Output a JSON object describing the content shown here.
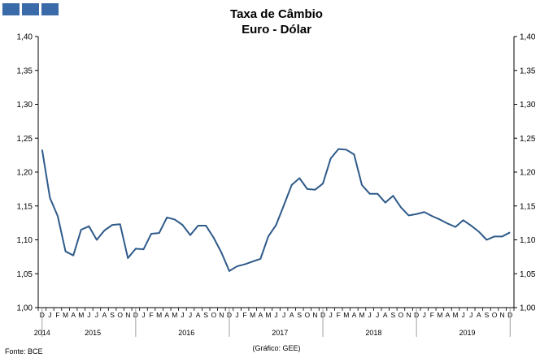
{
  "colors": {
    "logo": "#3a6aa8",
    "line": "#2e5a8a",
    "axis": "#000000"
  },
  "title_line1": "Taxa de Câmbio",
  "title_line2": "Euro - Dólar",
  "source": "Fonte: BCE",
  "credit": "(Gráfico: GEE)",
  "chart_data": {
    "type": "line",
    "title": "Taxa de Câmbio Euro - Dólar",
    "ylim": [
      1.0,
      1.4
    ],
    "yticks": [
      "1,00",
      "1,05",
      "1,10",
      "1,15",
      "1,20",
      "1,25",
      "1,30",
      "1,35",
      "1,40"
    ],
    "month_labels": [
      "D",
      "J",
      "F",
      "M",
      "A",
      "M",
      "J",
      "J",
      "A",
      "S",
      "O",
      "N",
      "D",
      "J",
      "F",
      "M",
      "A",
      "M",
      "J",
      "J",
      "A",
      "S",
      "O",
      "N",
      "D",
      "J",
      "F",
      "M",
      "A",
      "M",
      "J",
      "J",
      "A",
      "S",
      "O",
      "N",
      "D",
      "J",
      "F",
      "M",
      "A",
      "M",
      "J",
      "J",
      "A",
      "S",
      "O",
      "N",
      "D",
      "J",
      "F",
      "M",
      "A",
      "M",
      "J",
      "J",
      "A",
      "S",
      "O",
      "N",
      "D"
    ],
    "year_labels": [
      {
        "label": "2014",
        "month_index": 0
      },
      {
        "label": "2015",
        "month_index": 6.5
      },
      {
        "label": "2016",
        "month_index": 18.5
      },
      {
        "label": "2017",
        "month_index": 30.5
      },
      {
        "label": "2018",
        "month_index": 42.5
      },
      {
        "label": "2019",
        "month_index": 54.5
      }
    ],
    "year_separators": [
      0.5,
      12.5,
      24.5,
      36.5,
      48.5,
      60.5
    ],
    "series": [
      {
        "values": [
          1.233,
          1.162,
          1.135,
          1.083,
          1.077,
          1.115,
          1.12,
          1.1,
          1.114,
          1.122,
          1.123,
          1.073,
          1.087,
          1.086,
          1.109,
          1.11,
          1.133,
          1.13,
          1.122,
          1.107,
          1.121,
          1.121,
          1.103,
          1.081,
          1.054,
          1.061,
          1.064,
          1.068,
          1.072,
          1.105,
          1.122,
          1.151,
          1.181,
          1.191,
          1.175,
          1.174,
          1.183,
          1.22,
          1.234,
          1.233,
          1.226,
          1.181,
          1.168,
          1.168,
          1.155,
          1.165,
          1.148,
          1.136,
          1.138,
          1.141,
          1.135,
          1.13,
          1.124,
          1.119,
          1.129,
          1.121,
          1.112,
          1.1,
          1.105,
          1.105,
          1.111
        ]
      }
    ]
  }
}
